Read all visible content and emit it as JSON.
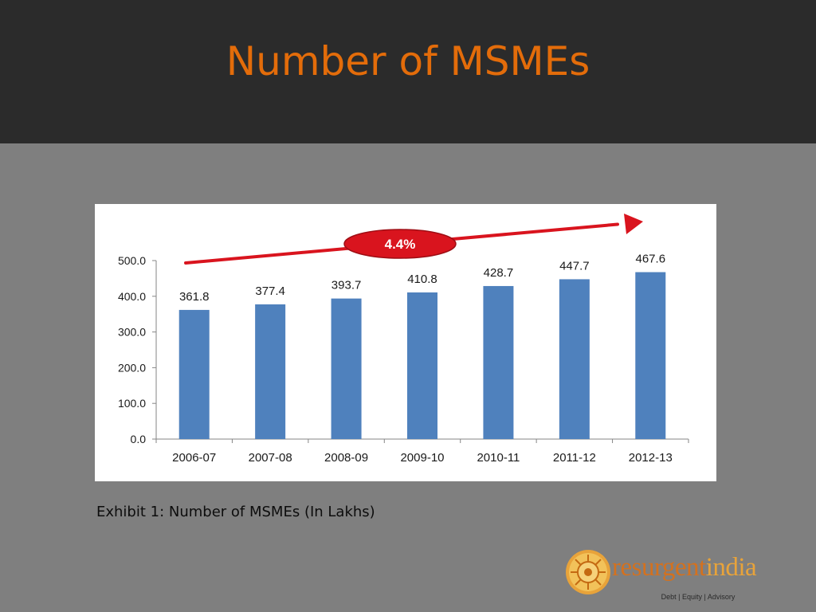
{
  "slide": {
    "title": "Number of MSMEs",
    "caption": "Exhibit 1: Number of MSMEs (In Lakhs)"
  },
  "logo": {
    "name_part1": "resurgent",
    "name_part2": "india",
    "tagline": "Debt | Equity | Advisory",
    "icon": "sun-wheel-icon",
    "colors": {
      "primary": "#d4711e",
      "secondary": "#e8a33a"
    }
  },
  "colors": {
    "title": "#e36c0a",
    "title_bar": "#2b2b2b",
    "background": "#7f7f7f",
    "bar": "#4f81bd",
    "trend_arrow": "#d9141e"
  },
  "chart_data": {
    "type": "bar",
    "categories": [
      "2006-07",
      "2007-08",
      "2008-09",
      "2009-10",
      "2010-11",
      "2011-12",
      "2012-13"
    ],
    "values": [
      361.8,
      377.4,
      393.7,
      410.8,
      428.7,
      447.7,
      467.6
    ],
    "data_labels": [
      "361.8",
      "377.4",
      "393.7",
      "410.8",
      "428.7",
      "447.7",
      "467.6"
    ],
    "yticks": [
      "0.0",
      "100.0",
      "200.0",
      "300.0",
      "400.0",
      "500.0"
    ],
    "ylim": [
      0,
      500
    ],
    "grid": false,
    "legend": "none",
    "annotation": {
      "text": "4.4%",
      "kind": "trend-arrow"
    }
  }
}
